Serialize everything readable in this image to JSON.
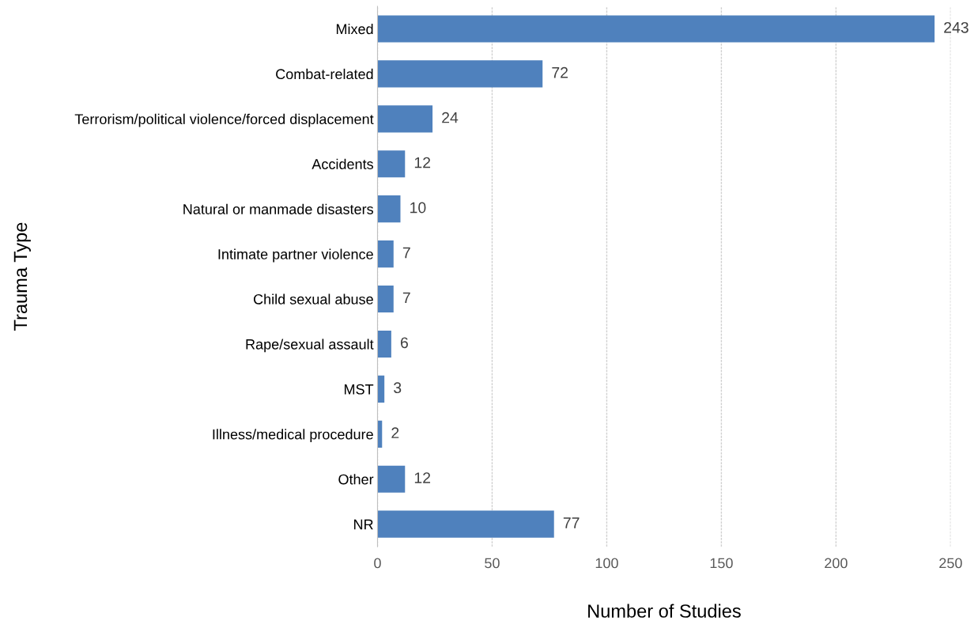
{
  "chart_data": {
    "type": "bar",
    "orientation": "horizontal",
    "xlabel": "Number of Studies",
    "ylabel": "Trauma Type",
    "categories": [
      "Mixed",
      "Combat-related",
      "Terrorism/political violence/forced displacement",
      "Accidents",
      "Natural or manmade disasters",
      "Intimate partner violence",
      "Child sexual abuse",
      "Rape/sexual assault",
      "MST",
      "Illness/medical procedure",
      "Other",
      "NR"
    ],
    "values": [
      243,
      72,
      24,
      12,
      10,
      7,
      7,
      6,
      3,
      2,
      12,
      77
    ],
    "color": "#4f81bd",
    "xlim": [
      0,
      250
    ],
    "xticks": [
      0,
      50,
      100,
      150,
      200,
      250
    ],
    "grid": "x",
    "data_labels": true,
    "legend": false
  }
}
